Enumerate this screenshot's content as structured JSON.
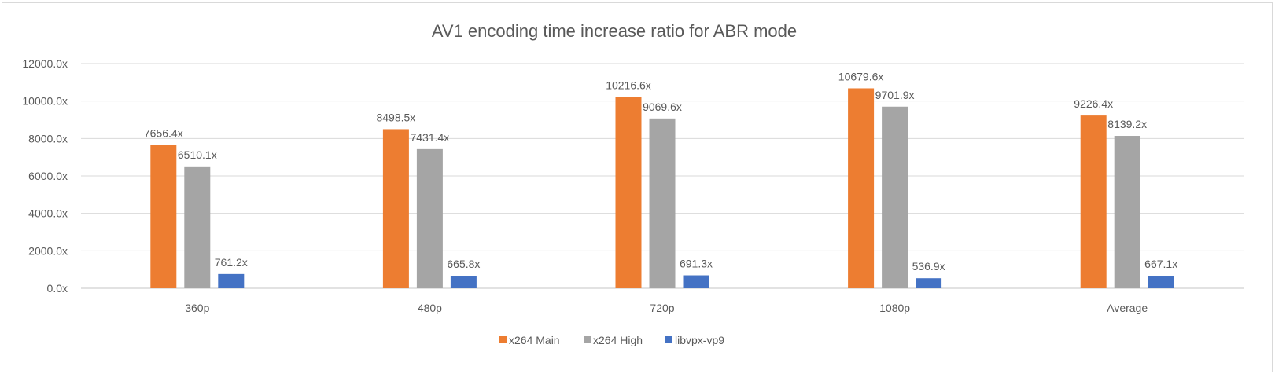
{
  "chart_data": {
    "type": "bar",
    "title": "AV1 encoding time increase ratio for ABR mode",
    "xlabel": "",
    "ylabel": "",
    "categories": [
      "360p",
      "480p",
      "720p",
      "1080p",
      "Average"
    ],
    "series": [
      {
        "name": "x264 Main",
        "color": "#ED7D31",
        "values": [
          7656.4,
          8498.5,
          10216.6,
          10679.6,
          9226.4
        ],
        "labels": [
          "7656.4x",
          "8498.5x",
          "10216.6x",
          "10679.6x",
          "9226.4x"
        ]
      },
      {
        "name": "x264 High",
        "color": "#A5A5A5",
        "values": [
          6510.1,
          7431.4,
          9069.6,
          9701.9,
          8139.2
        ],
        "labels": [
          "6510.1x",
          "7431.4x",
          "9069.6x",
          "9701.9x",
          "8139.2x"
        ]
      },
      {
        "name": "libvpx-vp9",
        "color": "#4472C4",
        "values": [
          761.2,
          665.8,
          691.3,
          536.9,
          667.1
        ],
        "labels": [
          "761.2x",
          "665.8x",
          "691.3x",
          "536.9x",
          "667.1x"
        ]
      }
    ],
    "ylim": [
      0,
      12000
    ],
    "yticks": [
      0,
      2000,
      4000,
      6000,
      8000,
      10000,
      12000
    ],
    "ytick_labels": [
      "0.0x",
      "2000.0x",
      "4000.0x",
      "6000.0x",
      "8000.0x",
      "10000.0x",
      "12000.0x"
    ],
    "grid": true,
    "legend": "bottom"
  }
}
